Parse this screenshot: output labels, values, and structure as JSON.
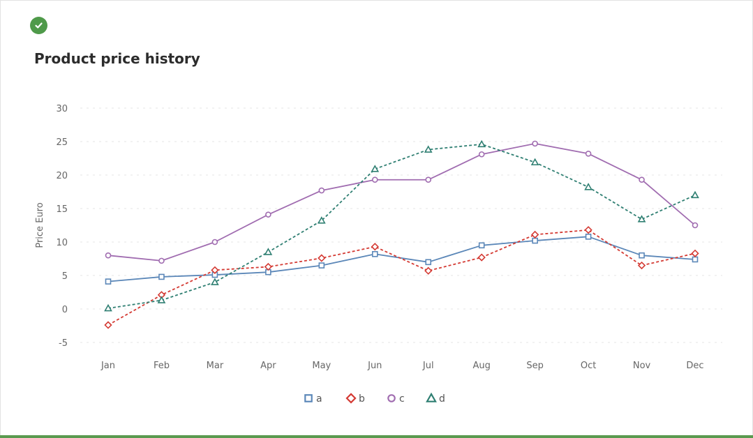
{
  "status": {
    "icon": "check-circle-icon",
    "color": "#4f9a4a"
  },
  "chart_data": {
    "type": "line",
    "title": "Product price history",
    "xlabel": "",
    "ylabel": "Price Euro",
    "ylim": [
      -5,
      30
    ],
    "yticks": [
      -5,
      0,
      5,
      10,
      15,
      20,
      25,
      30
    ],
    "categories": [
      "Jan",
      "Feb",
      "Mar",
      "Apr",
      "May",
      "Jun",
      "Jul",
      "Aug",
      "Sep",
      "Oct",
      "Nov",
      "Dec"
    ],
    "grid": "horizontal-dashed",
    "legend": "bottom-center",
    "series": [
      {
        "name": "a",
        "color": "#5b87b8",
        "marker": "square",
        "dashed": false,
        "values": [
          4.1,
          4.8,
          5.1,
          5.5,
          6.5,
          8.2,
          7.0,
          9.5,
          10.2,
          10.8,
          8.0,
          7.4
        ]
      },
      {
        "name": "b",
        "color": "#d43a33",
        "marker": "diamond",
        "dashed": true,
        "values": [
          -2.4,
          2.1,
          5.8,
          6.3,
          7.6,
          9.3,
          5.7,
          7.7,
          11.1,
          11.8,
          6.5,
          8.3
        ]
      },
      {
        "name": "c",
        "color": "#a06cb0",
        "marker": "circle",
        "dashed": false,
        "values": [
          8.0,
          7.2,
          10.0,
          14.1,
          17.7,
          19.3,
          19.3,
          23.1,
          24.7,
          23.2,
          19.3,
          12.5
        ]
      },
      {
        "name": "d",
        "color": "#2f7f72",
        "marker": "triangle",
        "dashed": true,
        "values": [
          0.1,
          1.3,
          4.0,
          8.5,
          13.2,
          20.9,
          23.8,
          24.6,
          21.9,
          18.2,
          13.4,
          17.0
        ]
      }
    ]
  }
}
